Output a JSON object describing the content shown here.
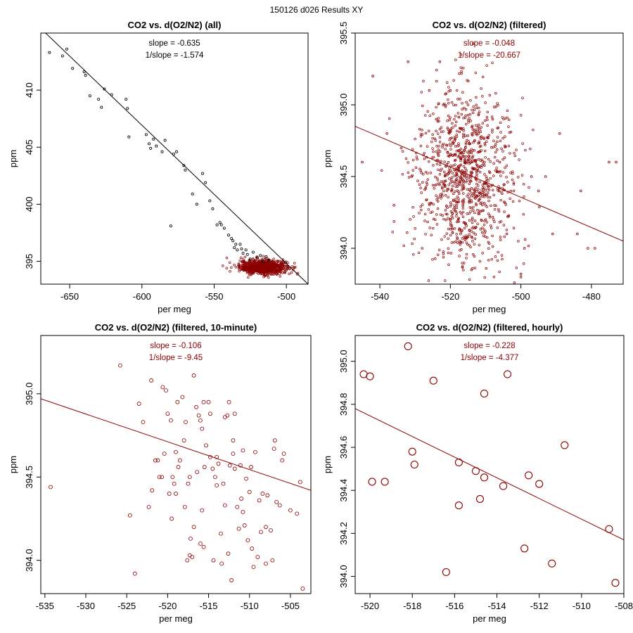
{
  "figure_title": "150126   d026   Results XY",
  "chart_data": [
    {
      "type": "scatter",
      "title": "CO2 vs. d(O2/N2) (all)",
      "xlabel": "per meg",
      "ylabel": "ppm",
      "xlim": [
        -670,
        -485
      ],
      "ylim": [
        393.0,
        415.0
      ],
      "xticks": [
        -650,
        -600,
        -550,
        -500
      ],
      "yticks": [
        395,
        400,
        405,
        410
      ],
      "stats": [
        "slope = -0.635",
        "1/slope = -1.574"
      ],
      "stats_color": "#000000",
      "fit_line": {
        "x": [
          -670,
          -485
        ],
        "y": [
          415.4,
          393.0
        ],
        "color": "#000000"
      },
      "series": [
        {
          "name": "all",
          "color": "#000000",
          "radius": 1.6,
          "points": [
            [
              -664,
              413.3
            ],
            [
              -655,
              413.0
            ],
            [
              -652,
              413.6
            ],
            [
              -648,
              411.9
            ],
            [
              -640,
              411.6
            ],
            [
              -639,
              411.3
            ],
            [
              -636,
              409.5
            ],
            [
              -630,
              409.2
            ],
            [
              -628,
              408.5
            ],
            [
              -626,
              410.1
            ],
            [
              -621,
              409.6
            ],
            [
              -611,
              409.2
            ],
            [
              -610,
              408.4
            ],
            [
              -609,
              405.9
            ],
            [
              -597,
              406.1
            ],
            [
              -595,
              405.3
            ],
            [
              -594,
              404.9
            ],
            [
              -592,
              405.7
            ],
            [
              -590,
              405.1
            ],
            [
              -586,
              404.6
            ],
            [
              -584,
              405.6
            ],
            [
              -580,
              398.1
            ],
            [
              -578,
              404.4
            ],
            [
              -576,
              404.6
            ],
            [
              -571,
              403.4
            ],
            [
              -570,
              403.0
            ],
            [
              -565,
              400.9
            ],
            [
              -562,
              400.0
            ],
            [
              -558,
              402.7
            ],
            [
              -556,
              401.9
            ],
            [
              -553,
              400.3
            ],
            [
              -551,
              399.6
            ],
            [
              -548,
              398.2
            ],
            [
              -546,
              398.4
            ],
            [
              -545,
              398.2
            ],
            [
              -543,
              397.9
            ],
            [
              -540,
              397.3
            ],
            [
              -538,
              397.0
            ],
            [
              -537,
              396.8
            ],
            [
              -536,
              396.2
            ],
            [
              -535,
              396.5
            ],
            [
              -534,
              396.0
            ],
            [
              -532,
              396.5
            ],
            [
              -531,
              396.1
            ],
            [
              -530,
              395.7
            ],
            [
              -528,
              396.0
            ],
            [
              -527,
              395.6
            ],
            [
              -525,
              395.2
            ],
            [
              -523,
              395.8
            ],
            [
              -520,
              395.3
            ],
            [
              -518,
              395.5
            ],
            [
              -516,
              395.0
            ],
            [
              -514,
              395.4
            ],
            [
              -512,
              395.1
            ]
          ]
        }
      ],
      "dense_cluster": {
        "center": [
          -516,
          394.5
        ],
        "spread": [
          8,
          0.3
        ],
        "count": 900,
        "color": "#8b0000"
      }
    },
    {
      "type": "scatter",
      "title": "CO2 vs. d(O2/N2) (filtered)",
      "xlabel": "per meg",
      "ylabel": "ppm",
      "xlim": [
        -547,
        -471
      ],
      "ylim": [
        393.75,
        395.5
      ],
      "xticks": [
        -540,
        -520,
        -500,
        -480
      ],
      "yticks": [
        394.0,
        394.5,
        395.0,
        395.5
      ],
      "stats": [
        "slope = -0.048",
        "1/slope = -20.667"
      ],
      "stats_color": "#8b0000",
      "fit_line": {
        "x": [
          -547,
          -471
        ],
        "y": [
          394.85,
          394.05
        ],
        "color": "#8b0000"
      },
      "series": [
        {
          "name": "filtered",
          "color": "#8b0000",
          "radius": 1.4,
          "points": [
            [
              -545,
              394.6
            ],
            [
              -542,
              395.2
            ],
            [
              -538,
              394.8
            ],
            [
              -536,
              394.3
            ],
            [
              -532,
              395.3
            ],
            [
              -531,
              394.5
            ],
            [
              -528,
              394.0
            ],
            [
              -526,
              395.1
            ],
            [
              -524,
              394.9
            ],
            [
              -523,
              395.3
            ],
            [
              -522,
              395.0
            ],
            [
              -520,
              395.1
            ],
            [
              -518,
              394.5
            ],
            [
              -517,
              395.35
            ],
            [
              -515,
              395.0
            ],
            [
              -514,
              393.85
            ],
            [
              -512,
              394.8
            ],
            [
              -510,
              394.2
            ],
            [
              -508,
              394.9
            ],
            [
              -506,
              394.6
            ],
            [
              -504,
              394.1
            ],
            [
              -502,
              394.4
            ],
            [
              -500,
              393.8
            ],
            [
              -500,
              393.82
            ],
            [
              -499,
              394.0
            ],
            [
              -497,
              394.5
            ],
            [
              -495,
              394.4
            ],
            [
              -493,
              394.5
            ],
            [
              -491,
              394.1
            ],
            [
              -489,
              394.8
            ],
            [
              -484,
              394.1
            ],
            [
              -483,
              394.4
            ],
            [
              -481,
              394.0
            ],
            [
              -479,
              394.0
            ],
            [
              -475,
              394.6
            ],
            [
              -473,
              394.6
            ],
            [
              -470,
              394.6
            ]
          ]
        }
      ],
      "dense_cluster": {
        "center": [
          -516,
          394.5
        ],
        "spread": [
          7,
          0.3
        ],
        "count": 1000,
        "color": "#8b0000"
      }
    },
    {
      "type": "scatter",
      "title": "CO2 vs. d(O2/N2) (filtered, 10-minute)",
      "xlabel": "per meg",
      "ylabel": "ppm",
      "xlim": [
        -535.5,
        -502.5
      ],
      "ylim": [
        393.8,
        395.35
      ],
      "xticks": [
        -535,
        -530,
        -525,
        -520,
        -515,
        -510,
        -505
      ],
      "yticks": [
        394.0,
        394.5,
        395.0
      ],
      "stats": [
        "slope = -0.106",
        "1/slope = -9.45"
      ],
      "stats_color": "#8b0000",
      "fit_line": {
        "x": [
          -535.5,
          -502.5
        ],
        "y": [
          394.97,
          394.42
        ],
        "color": "#8b0000"
      },
      "series": [
        {
          "name": "10-minute",
          "color": "#8b0000",
          "radius": 2.5,
          "points": [
            [
              -534.3,
              394.44
            ],
            [
              -525.8,
              395.17
            ],
            [
              -524.6,
              394.27
            ],
            [
              -524.0,
              393.92
            ],
            [
              -523.5,
              394.94
            ],
            [
              -523.0,
              394.83
            ],
            [
              -522.3,
              394.32
            ],
            [
              -521.9,
              394.42
            ],
            [
              -522.0,
              395.08
            ],
            [
              -521.5,
              394.6
            ],
            [
              -521.0,
              394.5
            ],
            [
              -520.6,
              395.04
            ],
            [
              -520.4,
              394.64
            ],
            [
              -520.2,
              395.02
            ],
            [
              -520.0,
              394.88
            ],
            [
              -519.8,
              394.4
            ],
            [
              -519.5,
              394.25
            ],
            [
              -519.4,
              394.5
            ],
            [
              -519.2,
              394.46
            ],
            [
              -519.0,
              394.4
            ],
            [
              -518.7,
              394.56
            ],
            [
              -518.5,
              394.6
            ],
            [
              -518.2,
              394.98
            ],
            [
              -518.0,
              394.72
            ],
            [
              -517.9,
              394.32
            ],
            [
              -517.6,
              394.0
            ],
            [
              -517.5,
              394.46
            ],
            [
              -517.3,
              394.03
            ],
            [
              -517.2,
              394.13
            ],
            [
              -517.0,
              394.02
            ],
            [
              -516.8,
              394.2
            ],
            [
              -516.5,
              394.92
            ],
            [
              -516.4,
              394.53
            ],
            [
              -516.2,
              394.87
            ],
            [
              -516.0,
              394.1
            ],
            [
              -515.8,
              394.3
            ],
            [
              -515.6,
              394.08
            ],
            [
              -515.5,
              394.56
            ],
            [
              -515.3,
              394.69
            ],
            [
              -515.0,
              394.95
            ],
            [
              -514.8,
              394.62
            ],
            [
              -514.5,
              394.55
            ],
            [
              -514.4,
              394.0
            ],
            [
              -514.2,
              394.5
            ],
            [
              -514.0,
              394.45
            ],
            [
              -513.8,
              394.58
            ],
            [
              -513.5,
              394.16
            ],
            [
              -513.4,
              393.98
            ],
            [
              -513.2,
              394.46
            ],
            [
              -513.0,
              394.33
            ],
            [
              -512.7,
              394.87
            ],
            [
              -512.6,
              394.04
            ],
            [
              -512.4,
              394.57
            ],
            [
              -512.2,
              393.88
            ],
            [
              -512.0,
              394.72
            ],
            [
              -511.8,
              394.55
            ],
            [
              -511.5,
              394.32
            ],
            [
              -511.3,
              394.19
            ],
            [
              -511.0,
              394.37
            ],
            [
              -510.8,
              394.66
            ],
            [
              -510.6,
              394.21
            ],
            [
              -510.4,
              394.49
            ],
            [
              -510.2,
              394.12
            ],
            [
              -510.0,
              394.41
            ],
            [
              -509.8,
              394.56
            ],
            [
              -509.7,
              394.07
            ],
            [
              -509.5,
              393.96
            ],
            [
              -509.3,
              394.65
            ],
            [
              -509.0,
              394.02
            ],
            [
              -508.8,
              394.36
            ],
            [
              -508.6,
              394.17
            ],
            [
              -508.4,
              394.4
            ],
            [
              -508.0,
              393.98
            ],
            [
              -507.8,
              394.39
            ],
            [
              -507.4,
              394.18
            ],
            [
              -507.2,
              394.0
            ],
            [
              -507.0,
              394.67
            ],
            [
              -506.7,
              394.35
            ],
            [
              -506.3,
              394.33
            ],
            [
              -506.0,
              394.6
            ],
            [
              -505.8,
              394.64
            ],
            [
              -505.0,
              394.3
            ],
            [
              -504.2,
              394.28
            ],
            [
              -503.8,
              394.47
            ],
            [
              -503.5,
              393.83
            ],
            [
              -516.8,
              395.11
            ],
            [
              -515.6,
              394.95
            ],
            [
              -515.8,
              394.79
            ],
            [
              -514.0,
              394.62
            ],
            [
              -512.5,
              394.95
            ],
            [
              -511.8,
              394.88
            ],
            [
              -518.8,
              394.95
            ],
            [
              -519.6,
              394.84
            ],
            [
              -521.2,
              394.6
            ],
            [
              -517.8,
              394.83
            ],
            [
              -516.0,
              394.84
            ],
            [
              -513.0,
              394.86
            ],
            [
              -511.1,
              394.57
            ],
            [
              -510.8,
              394.29
            ],
            [
              -508.0,
              394.2
            ],
            [
              -506.9,
              394.72
            ],
            [
              -519.0,
              394.65
            ],
            [
              -517.3,
              394.5
            ],
            [
              -514.8,
              394.88
            ],
            [
              -512.0,
              394.64
            ],
            [
              -520.7,
              394.5
            ]
          ]
        }
      ]
    },
    {
      "type": "scatter",
      "title": "CO2 vs. d(O2/N2) (filtered, hourly)",
      "xlabel": "per meg",
      "ylabel": "ppm",
      "xlim": [
        -520.7,
        -508.0
      ],
      "ylim": [
        393.92,
        395.12
      ],
      "xticks": [
        -520,
        -518,
        -516,
        -514,
        -512,
        -510,
        -508
      ],
      "yticks": [
        394.0,
        394.2,
        394.4,
        394.6,
        394.8,
        395.0
      ],
      "stats": [
        "slope = -0.228",
        "1/slope = -4.377"
      ],
      "stats_color": "#8b0000",
      "fit_line": {
        "x": [
          -520.7,
          -508.0
        ],
        "y": [
          394.78,
          394.17
        ],
        "color": "#8b0000"
      },
      "series": [
        {
          "name": "hourly",
          "color": "#8b0000",
          "radius": 5,
          "points": [
            [
              -520.3,
              394.94
            ],
            [
              -520.0,
              394.93
            ],
            [
              -519.9,
              394.44
            ],
            [
              -519.3,
              394.44
            ],
            [
              -518.2,
              395.07
            ],
            [
              -518.0,
              394.58
            ],
            [
              -517.9,
              394.52
            ],
            [
              -517.0,
              394.91
            ],
            [
              -516.4,
              394.02
            ],
            [
              -515.8,
              394.53
            ],
            [
              -515.8,
              394.33
            ],
            [
              -515.0,
              394.49
            ],
            [
              -514.8,
              394.36
            ],
            [
              -514.6,
              394.85
            ],
            [
              -514.6,
              394.46
            ],
            [
              -513.7,
              394.42
            ],
            [
              -513.5,
              394.94
            ],
            [
              -512.7,
              394.13
            ],
            [
              -512.5,
              394.47
            ],
            [
              -512.0,
              394.43
            ],
            [
              -511.4,
              394.06
            ],
            [
              -510.8,
              394.61
            ],
            [
              -508.7,
              394.22
            ],
            [
              -508.4,
              393.97
            ]
          ]
        }
      ]
    }
  ]
}
